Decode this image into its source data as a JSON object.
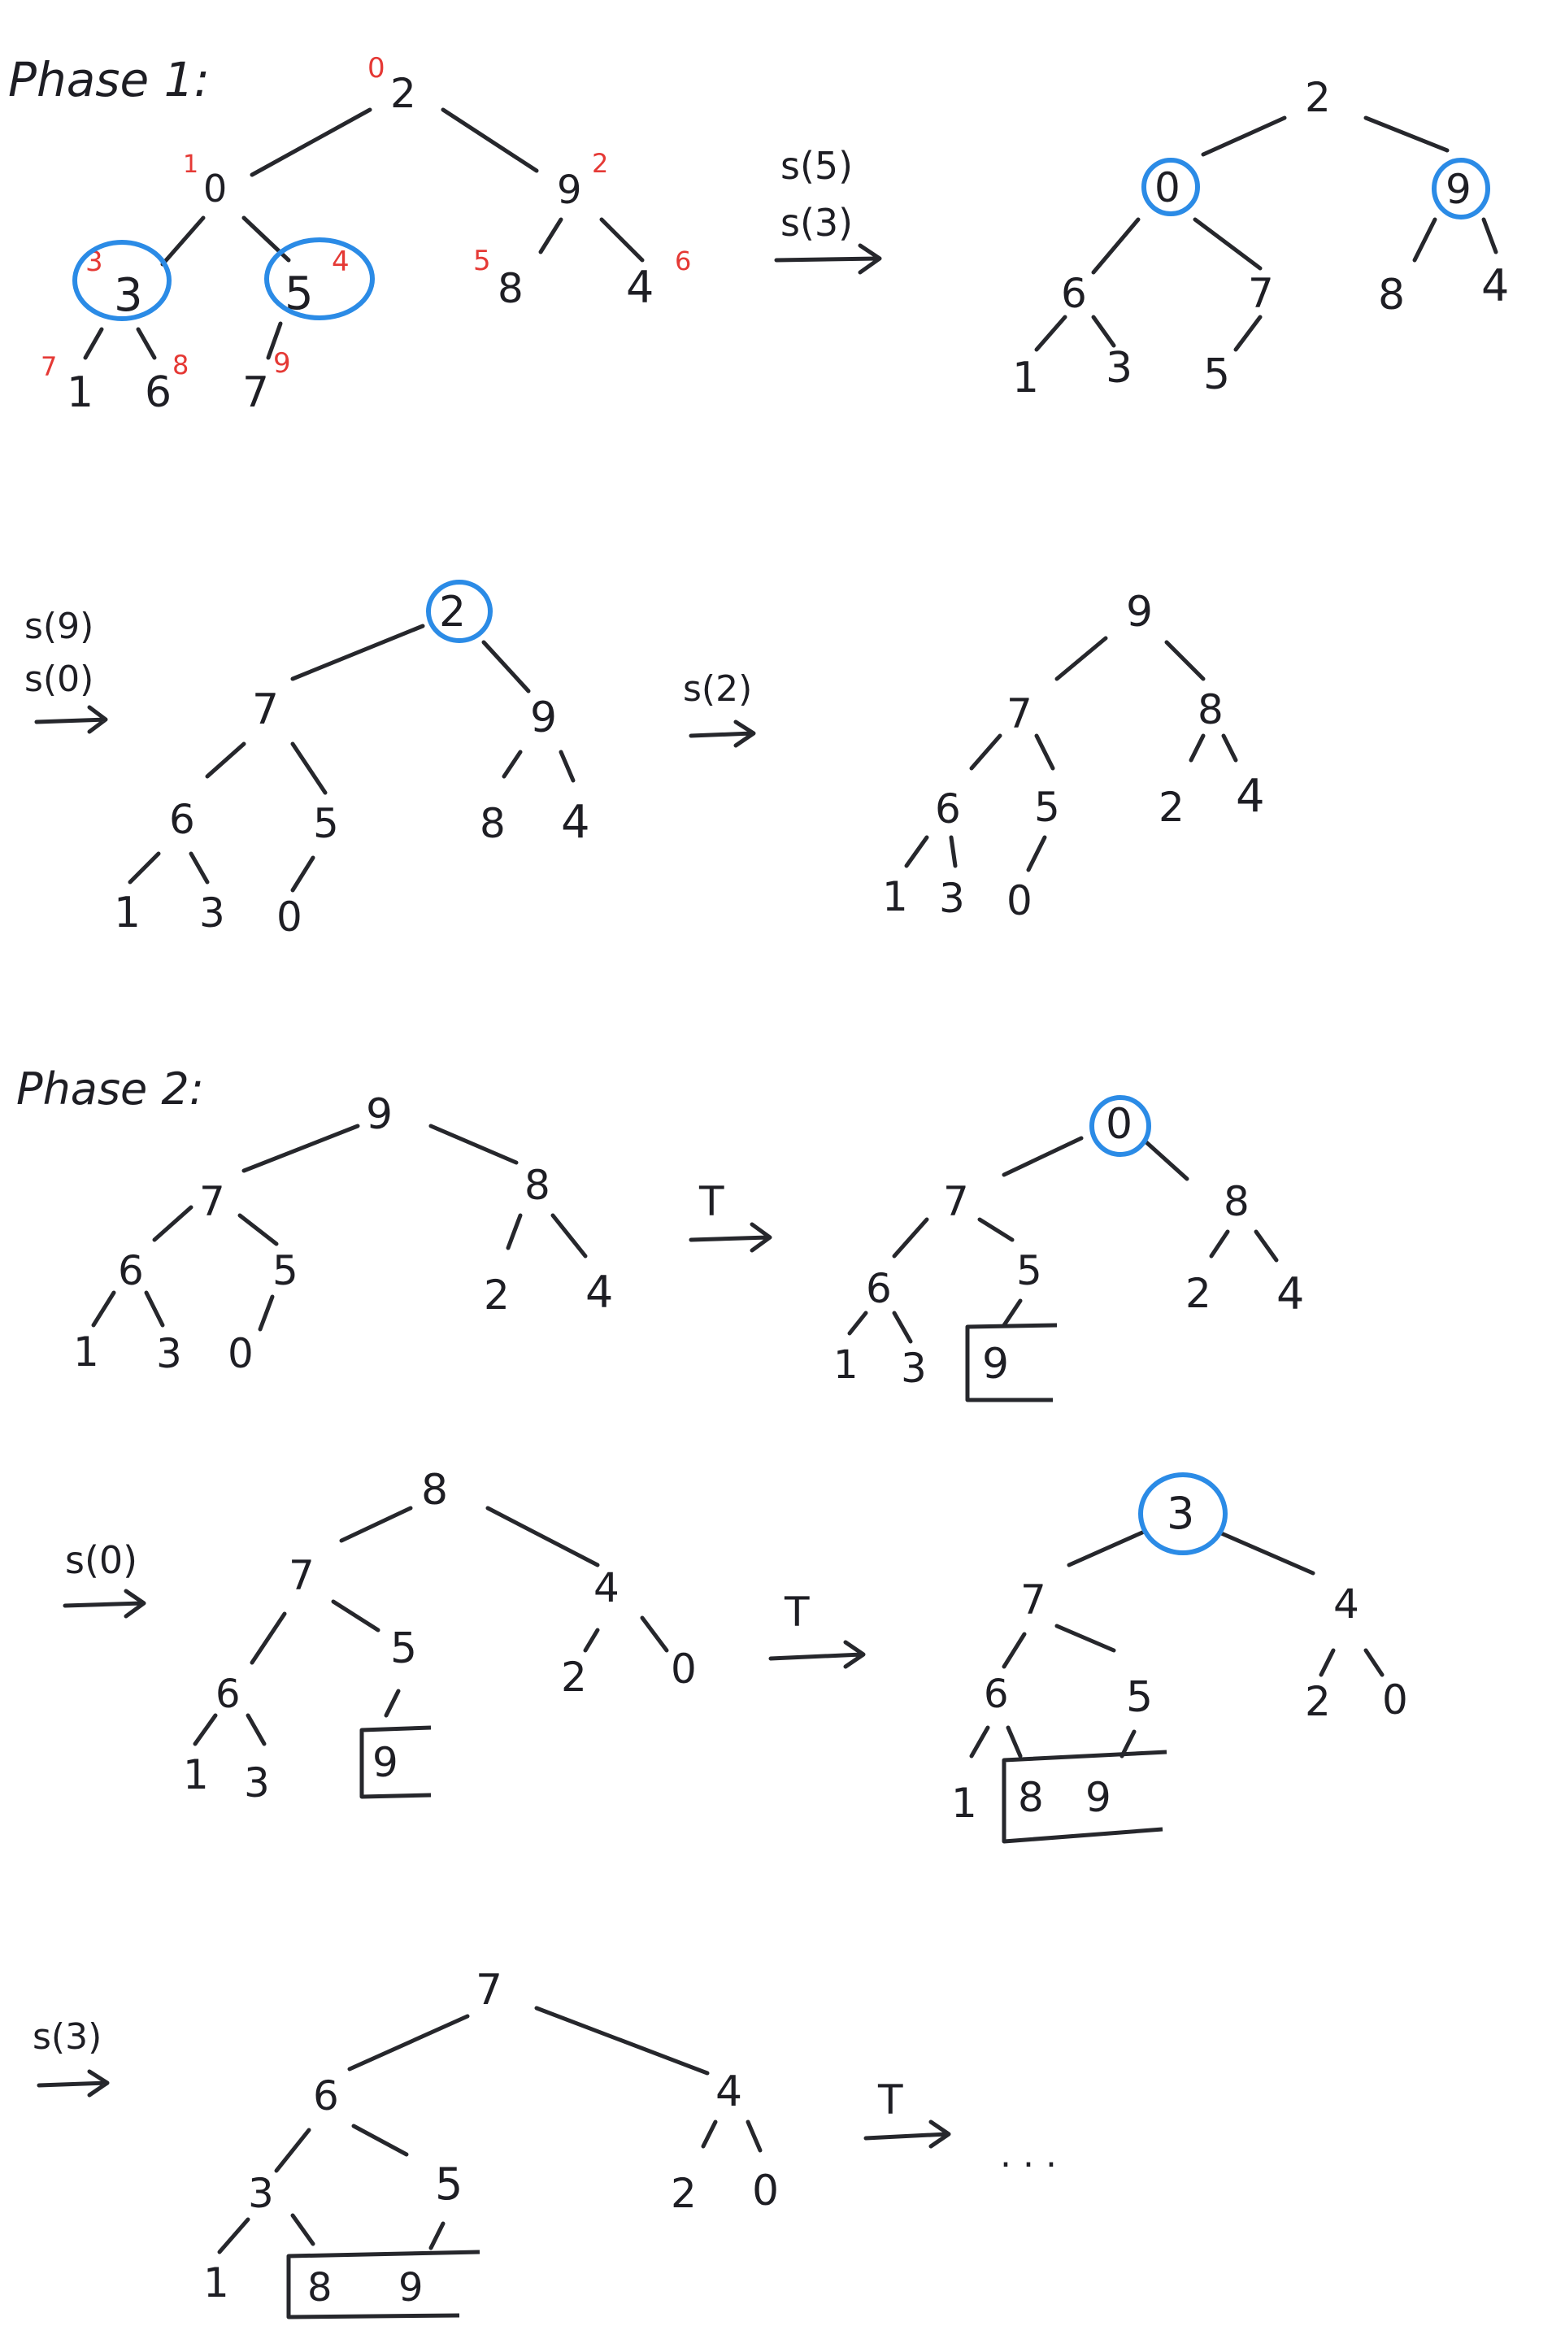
{
  "phase1": {
    "heading": "Phase 1:",
    "step1": {
      "nodes": [
        "2",
        "0",
        "9",
        "3",
        "5",
        "8",
        "4",
        "1",
        "6",
        "7"
      ],
      "indices": [
        "0",
        "1",
        "2",
        "3",
        "4",
        "5",
        "6",
        "7",
        "8",
        "9"
      ],
      "highlighted": [
        "3",
        "5"
      ]
    },
    "arrow1": [
      "s(5)",
      "s(3)"
    ],
    "step2": {
      "nodes": [
        "2",
        "0",
        "9",
        "6",
        "7",
        "8",
        "4",
        "1",
        "3",
        "5"
      ],
      "highlighted": [
        "0",
        "9"
      ]
    },
    "arrow2": [
      "s(9)",
      "s(0)"
    ],
    "step3": {
      "nodes": [
        "2",
        "7",
        "9",
        "6",
        "5",
        "8",
        "4",
        "1",
        "3",
        "0"
      ],
      "highlighted": [
        "2"
      ]
    },
    "arrow3": [
      "s(2)"
    ],
    "step4": {
      "nodes": [
        "9",
        "7",
        "8",
        "6",
        "5",
        "2",
        "4",
        "1",
        "3",
        "0"
      ]
    }
  },
  "phase2": {
    "heading": "Phase 2:",
    "step1": {
      "nodes": [
        "9",
        "7",
        "8",
        "6",
        "5",
        "2",
        "4",
        "1",
        "3",
        "0"
      ]
    },
    "arrowT1": "T",
    "step2": {
      "nodes": [
        "0",
        "7",
        "8",
        "6",
        "5",
        "2",
        "4",
        "1",
        "3"
      ],
      "sorted": [
        "9"
      ],
      "highlighted": [
        "0"
      ]
    },
    "arrow_s0": "s(0)",
    "step3": {
      "nodes": [
        "8",
        "7",
        "4",
        "6",
        "5",
        "2",
        "0",
        "1",
        "3"
      ],
      "sorted": [
        "9"
      ]
    },
    "arrowT2": "T",
    "step4": {
      "nodes": [
        "3",
        "7",
        "4",
        "6",
        "5",
        "2",
        "0",
        "1"
      ],
      "sorted": [
        "8",
        "9"
      ],
      "highlighted": [
        "3"
      ]
    },
    "arrow_s3": "s(3)",
    "step5": {
      "nodes": [
        "7",
        "6",
        "4",
        "3",
        "5",
        "2",
        "0",
        "1"
      ],
      "sorted": [
        "8",
        "9"
      ]
    },
    "arrowT3": "T",
    "ellipsis": ". . ."
  },
  "colors": {
    "ink": "#1e1e24",
    "index": "#e53935",
    "highlight": "#2b8be6"
  }
}
